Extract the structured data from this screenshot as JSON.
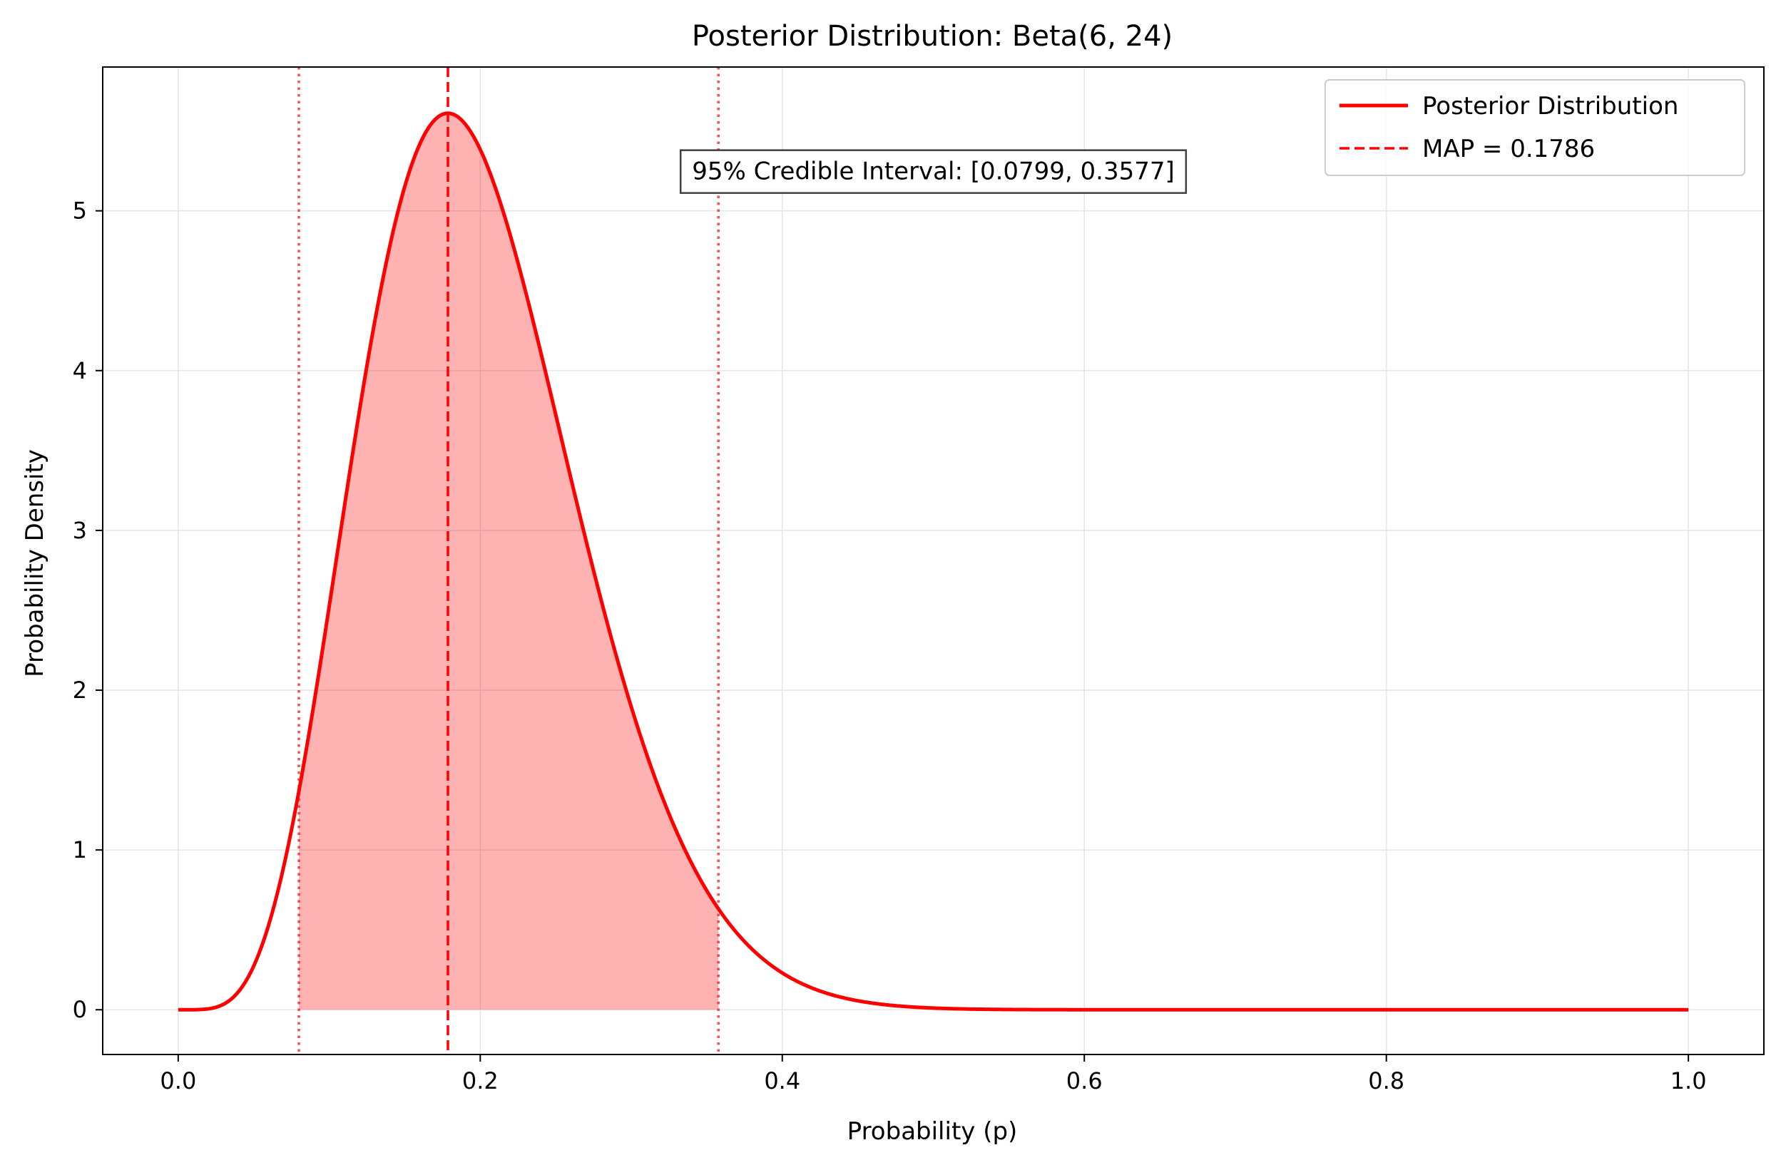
{
  "chart_data": {
    "type": "line",
    "title": "Posterior Distribution: Beta(6, 24)",
    "xlabel": "Probability (p)",
    "ylabel": "Probability Density",
    "xlim": [
      -0.05,
      1.05
    ],
    "ylim": [
      -0.28,
      5.9
    ],
    "x_ticks": [
      0.0,
      0.2,
      0.4,
      0.6,
      0.8,
      1.0
    ],
    "x_tick_labels": [
      "0.0",
      "0.2",
      "0.4",
      "0.6",
      "0.8",
      "1.0"
    ],
    "y_ticks": [
      0,
      1,
      2,
      3,
      4,
      5
    ],
    "y_tick_labels": [
      "0",
      "1",
      "2",
      "3",
      "4",
      "5"
    ],
    "grid": true,
    "legend_position": "top-right",
    "distribution": {
      "family": "beta",
      "alpha": 6,
      "beta": 24
    },
    "series": [
      {
        "name": "Posterior Distribution",
        "style": "solid",
        "color": "#ff0000"
      }
    ],
    "reference_lines": [
      {
        "name": "MAP = 0.1786",
        "x": 0.1786,
        "style": "dashed",
        "color": "#ff0000",
        "in_legend": true
      },
      {
        "x": 0.0799,
        "style": "dotted",
        "color": "#ff0000",
        "in_legend": false
      },
      {
        "x": 0.3577,
        "style": "dotted",
        "color": "#ff0000",
        "in_legend": false
      }
    ],
    "shaded_interval": {
      "from": 0.0799,
      "to": 0.3577,
      "color": "#ff0000",
      "opacity": 0.3
    },
    "annotation": {
      "text": "95% Credible Interval: [0.0799, 0.3577]",
      "x": 0.5,
      "y": 5.25
    }
  }
}
